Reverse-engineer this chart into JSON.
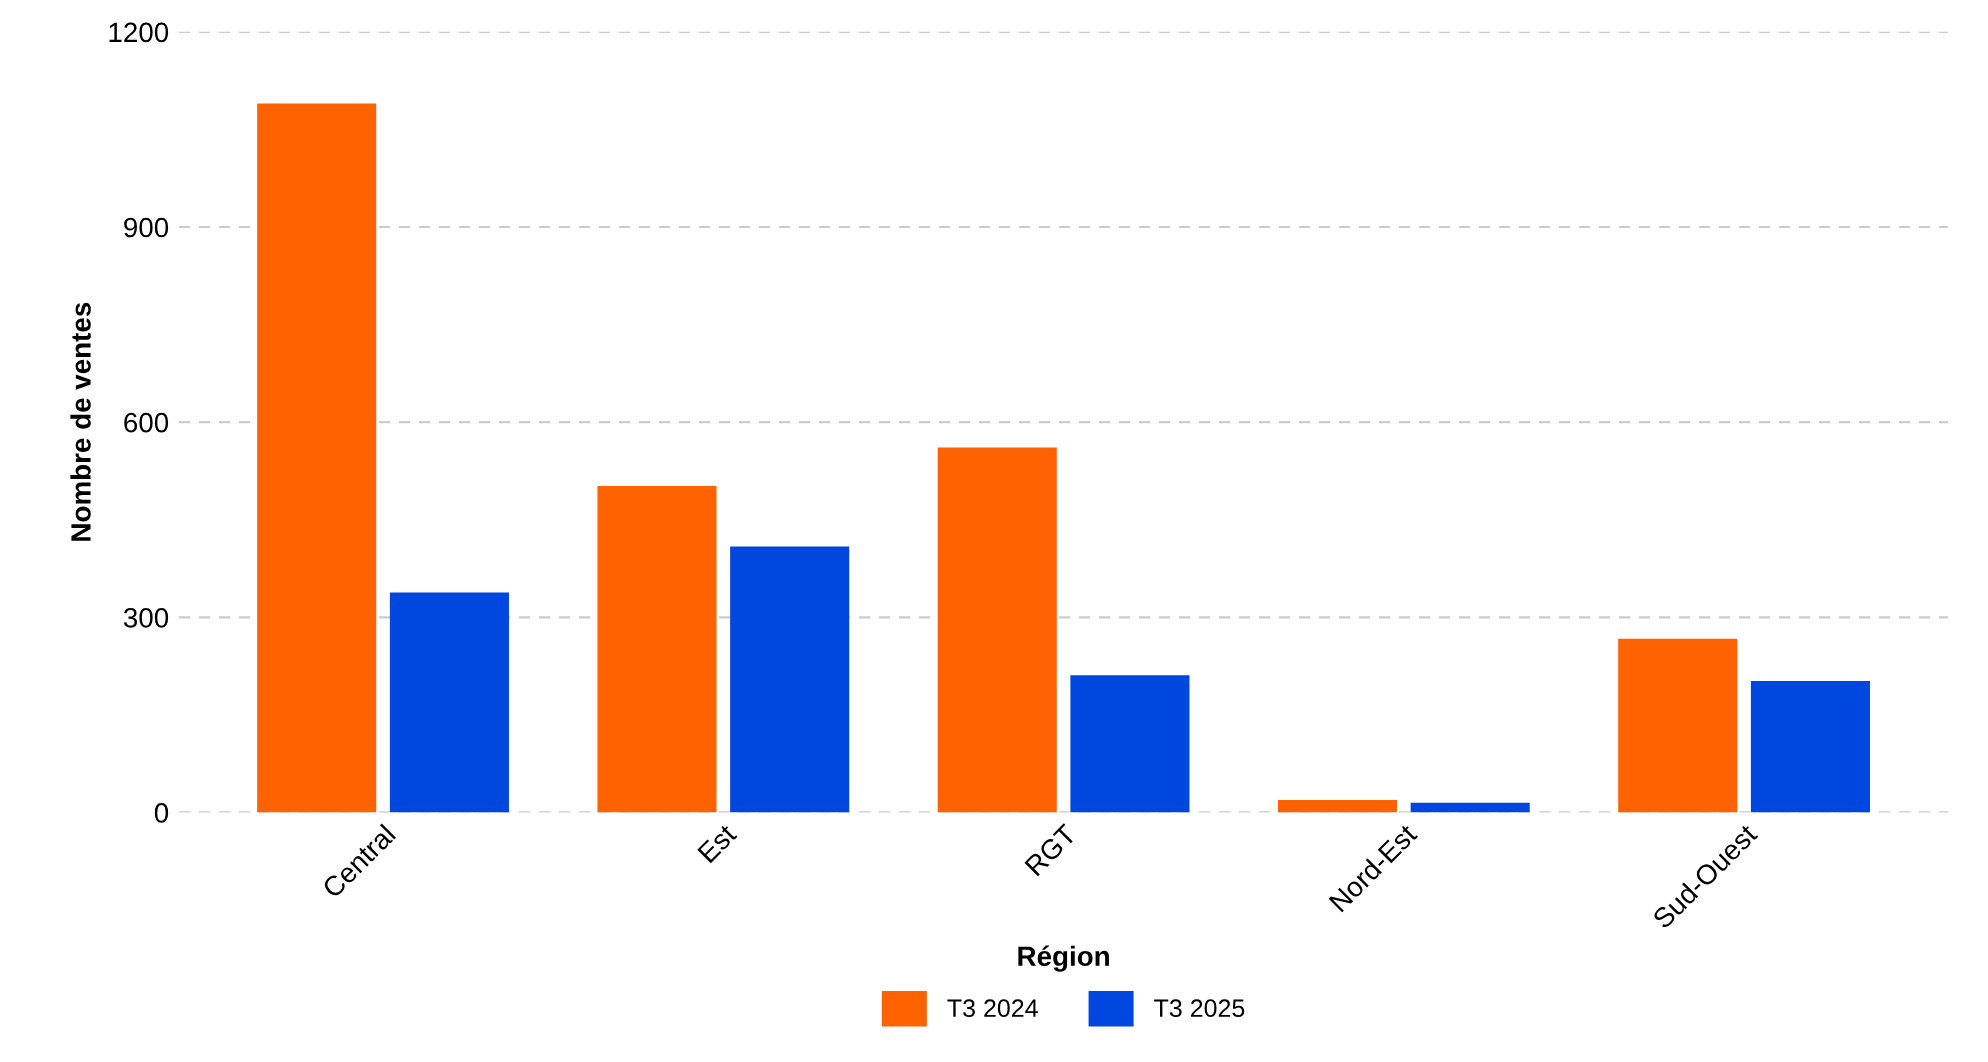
{
  "chart_data": {
    "type": "bar",
    "xlabel": "Région",
    "ylabel": "Nombre de ventes",
    "categories": [
      "Central",
      "Est",
      "RGT",
      "Nord-Est",
      "Sud-Ouest"
    ],
    "series": [
      {
        "name": "T3 2024",
        "color": "#ff6200",
        "values": [
          1090,
          502,
          561,
          19,
          267
        ]
      },
      {
        "name": "T3 2025",
        "color": "#0047e0",
        "values": [
          338,
          409,
          211,
          15,
          202
        ]
      }
    ],
    "ylim": [
      0,
      1200
    ],
    "yticks": [
      0,
      300,
      600,
      900,
      1200
    ],
    "grid": "y",
    "legend": "bottom"
  }
}
